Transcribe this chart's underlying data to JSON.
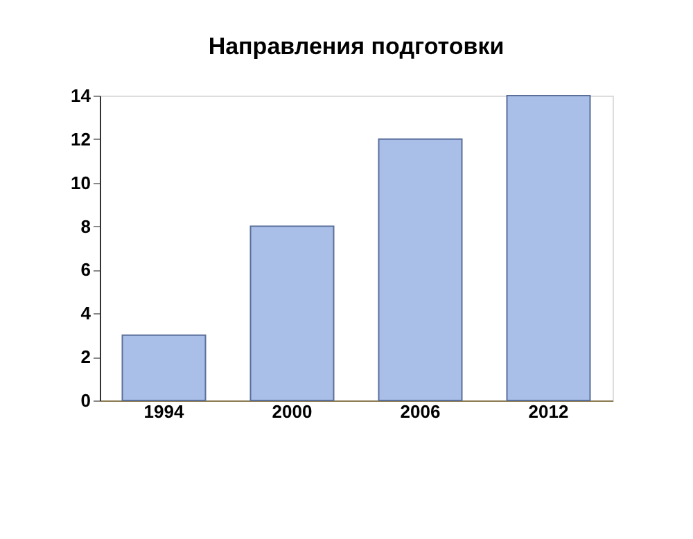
{
  "chart_data": {
    "type": "bar",
    "title": "Направления подготовки",
    "categories": [
      "1994",
      "2000",
      "2006",
      "2012"
    ],
    "values": [
      3,
      8,
      12,
      14
    ],
    "color": "#a9bfe8",
    "ylim": [
      0,
      14
    ],
    "yticks": [
      0,
      2,
      4,
      6,
      8,
      10,
      12,
      14
    ],
    "grid": false
  }
}
